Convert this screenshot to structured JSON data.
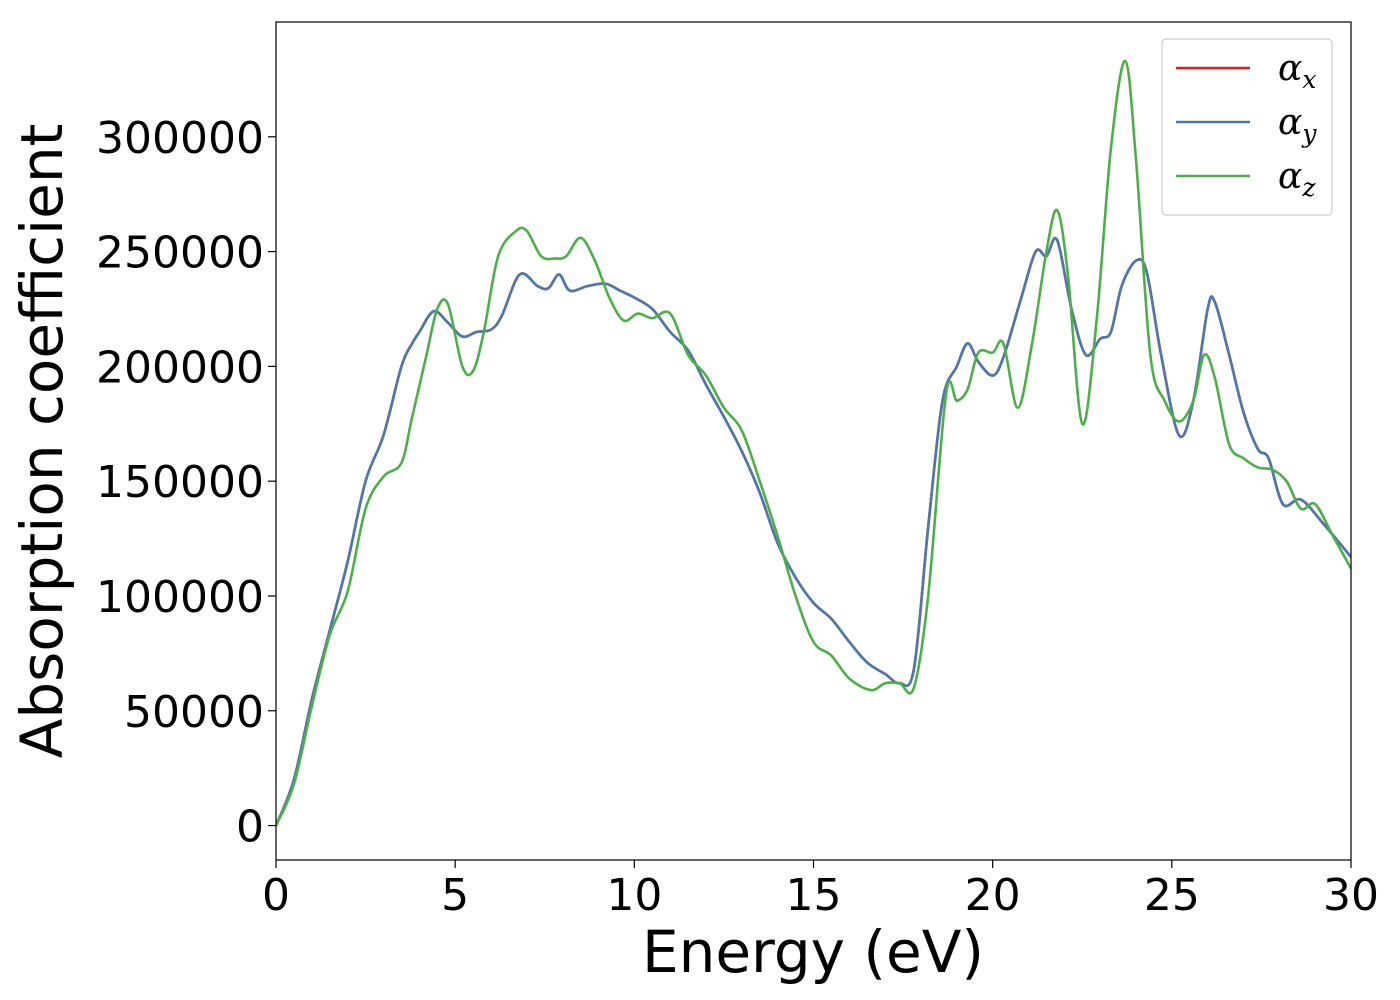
{
  "chart_data": {
    "type": "line",
    "title": "",
    "xlabel": "Energy (eV)",
    "ylabel": "Absorption coefficient",
    "xlim": [
      0,
      30
    ],
    "ylim": [
      -15000,
      350000
    ],
    "xticks": [
      0,
      5,
      10,
      15,
      20,
      25,
      30
    ],
    "yticks": [
      0,
      50000,
      100000,
      150000,
      200000,
      250000,
      300000
    ],
    "grid": false,
    "legend_position": "top-right",
    "series": [
      {
        "symbol": "α",
        "subscript": "x",
        "color": "#e41a1c",
        "x": [
          0,
          0.5,
          1,
          1.5,
          2,
          2.5,
          3,
          3.5,
          3.8,
          4,
          4.4,
          4.8,
          5.2,
          5.6,
          6,
          6.3,
          6.8,
          7.3,
          7.6,
          7.9,
          8.2,
          8.7,
          9.2,
          9.6,
          10,
          10.5,
          11,
          11.5,
          12,
          12.5,
          13,
          13.5,
          14,
          14.5,
          15,
          15.5,
          16,
          16.5,
          17,
          17.4,
          17.8,
          18.2,
          18.6,
          19,
          19.3,
          19.6,
          20,
          20.3,
          20.8,
          21.2,
          21.5,
          21.8,
          22.2,
          22.6,
          23,
          23.3,
          23.6,
          24,
          24.3,
          24.7,
          25.2,
          25.6,
          26,
          26.2,
          26.6,
          27,
          27.4,
          27.7,
          28.1,
          28.6,
          29.2,
          30
        ],
        "y": [
          0,
          20000,
          55000,
          85000,
          115000,
          150000,
          170000,
          200000,
          210000,
          215000,
          224000,
          219000,
          213000,
          215000,
          216000,
          222000,
          240000,
          235000,
          234000,
          240000,
          233000,
          235000,
          236000,
          233000,
          230000,
          225000,
          215000,
          207000,
          192000,
          178000,
          163000,
          145000,
          123000,
          108000,
          97000,
          90000,
          80000,
          71000,
          66000,
          62000,
          68000,
          130000,
          185000,
          200000,
          210000,
          202000,
          196000,
          204000,
          230000,
          250000,
          248000,
          255000,
          225000,
          205000,
          212000,
          215000,
          235000,
          246000,
          241000,
          205000,
          170000,
          185000,
          225000,
          228000,
          205000,
          180000,
          164000,
          160000,
          140000,
          142000,
          132000,
          117000
        ]
      },
      {
        "symbol": "α",
        "subscript": "y",
        "color": "#4a7aad",
        "x": [
          0,
          0.5,
          1,
          1.5,
          2,
          2.5,
          3,
          3.5,
          3.8,
          4,
          4.4,
          4.8,
          5.2,
          5.6,
          6,
          6.3,
          6.8,
          7.3,
          7.6,
          7.9,
          8.2,
          8.7,
          9.2,
          9.6,
          10,
          10.5,
          11,
          11.5,
          12,
          12.5,
          13,
          13.5,
          14,
          14.5,
          15,
          15.5,
          16,
          16.5,
          17,
          17.4,
          17.8,
          18.2,
          18.6,
          19,
          19.3,
          19.6,
          20,
          20.3,
          20.8,
          21.2,
          21.5,
          21.8,
          22.2,
          22.6,
          23,
          23.3,
          23.6,
          24,
          24.3,
          24.7,
          25.2,
          25.6,
          26,
          26.2,
          26.6,
          27,
          27.4,
          27.7,
          28.1,
          28.6,
          29.2,
          30
        ],
        "y": [
          0,
          20000,
          55000,
          85000,
          115000,
          150000,
          170000,
          200000,
          210000,
          215000,
          224000,
          219000,
          213000,
          215000,
          216000,
          222000,
          240000,
          235000,
          234000,
          240000,
          233000,
          235000,
          236000,
          233000,
          230000,
          225000,
          215000,
          207000,
          192000,
          178000,
          163000,
          145000,
          123000,
          108000,
          97000,
          90000,
          80000,
          71000,
          66000,
          62000,
          68000,
          130000,
          185000,
          200000,
          210000,
          202000,
          196000,
          204000,
          230000,
          250000,
          248000,
          255000,
          225000,
          205000,
          212000,
          215000,
          235000,
          246000,
          241000,
          205000,
          170000,
          185000,
          225000,
          228000,
          205000,
          180000,
          164000,
          160000,
          140000,
          142000,
          132000,
          117000
        ]
      },
      {
        "symbol": "α",
        "subscript": "z",
        "color": "#4daf4a",
        "x": [
          0,
          0.5,
          1,
          1.5,
          2,
          2.5,
          3,
          3.5,
          3.8,
          4.2,
          4.5,
          4.8,
          5.2,
          5.5,
          5.8,
          6.2,
          6.7,
          7.0,
          7.4,
          7.8,
          8.1,
          8.5,
          8.9,
          9.3,
          9.7,
          10.1,
          10.5,
          11.0,
          11.5,
          12.0,
          12.5,
          13.0,
          13.5,
          14.0,
          14.5,
          15.0,
          15.5,
          16.0,
          16.6,
          17.0,
          17.4,
          17.8,
          18.2,
          18.7,
          19.0,
          19.3,
          19.6,
          20.0,
          20.3,
          20.7,
          21.1,
          21.5,
          21.8,
          22.1,
          22.5,
          22.9,
          23.3,
          23.7,
          24.0,
          24.4,
          24.8,
          25.2,
          25.6,
          25.9,
          26.2,
          26.6,
          27.0,
          27.4,
          27.8,
          28.2,
          28.6,
          29.0,
          29.5,
          30.0
        ],
        "y": [
          0,
          18000,
          52000,
          83000,
          102000,
          138000,
          152000,
          158000,
          178000,
          205000,
          225000,
          227000,
          200000,
          198000,
          215000,
          248000,
          259000,
          259000,
          248000,
          247000,
          248000,
          256000,
          246000,
          230000,
          220000,
          223000,
          221000,
          223000,
          205000,
          196000,
          182000,
          172000,
          150000,
          126000,
          100000,
          80000,
          74000,
          64000,
          59000,
          62000,
          62000,
          60000,
          100000,
          188000,
          185000,
          190000,
          206000,
          206000,
          210000,
          182000,
          210000,
          250000,
          268000,
          240000,
          175000,
          220000,
          295000,
          333000,
          290000,
          205000,
          185000,
          176000,
          185000,
          205000,
          195000,
          166000,
          160000,
          156000,
          155000,
          150000,
          138000,
          140000,
          126000,
          112000
        ]
      }
    ]
  }
}
